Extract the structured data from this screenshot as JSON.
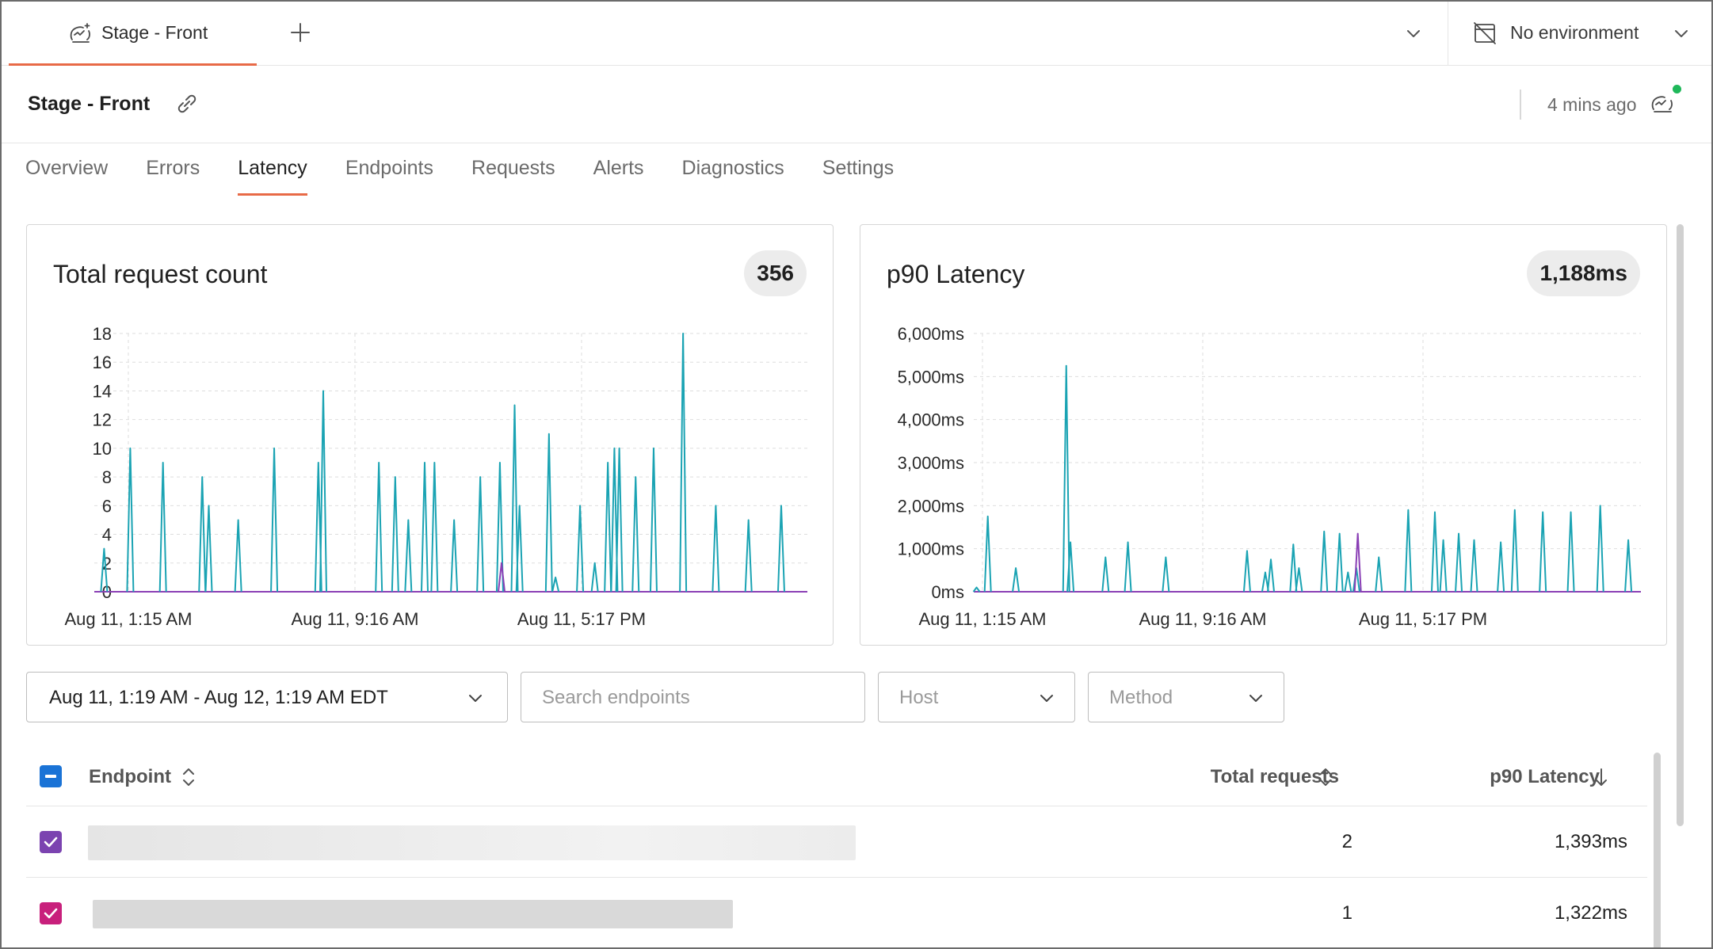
{
  "tabs": {
    "active_label": "Stage - Front",
    "environment_label": "No environment"
  },
  "header": {
    "title": "Stage - Front",
    "updated": "4 mins ago",
    "status_color": "#1fb85a"
  },
  "subnav": [
    "Overview",
    "Errors",
    "Latency",
    "Endpoints",
    "Requests",
    "Alerts",
    "Diagnostics",
    "Settings"
  ],
  "subnav_active": "Latency",
  "accent_color": "#e86a47",
  "charts": {
    "requests": {
      "title": "Total request count",
      "badge": "356"
    },
    "latency": {
      "title": "p90 Latency",
      "badge": "1,188ms"
    }
  },
  "chart_data": [
    {
      "type": "line",
      "title": "Total request count",
      "y_ticks": [
        "0",
        "2",
        "4",
        "6",
        "8",
        "10",
        "12",
        "14",
        "16",
        "18"
      ],
      "ylim": [
        0,
        18
      ],
      "x_ticks": [
        "Aug 11, 1:15 AM",
        "Aug 11, 9:16 AM",
        "Aug 11, 5:17 PM"
      ],
      "grid": true,
      "series": [
        {
          "color": "#1aa3b3",
          "spikes": [
            [
              0.3,
              3
            ],
            [
              1.1,
              10
            ],
            [
              2.1,
              9
            ],
            [
              3.3,
              8
            ],
            [
              3.5,
              6
            ],
            [
              4.4,
              5
            ],
            [
              5.5,
              10
            ],
            [
              6.85,
              9
            ],
            [
              7.0,
              14
            ],
            [
              8.7,
              9
            ],
            [
              9.2,
              8
            ],
            [
              9.6,
              5
            ],
            [
              10.1,
              9
            ],
            [
              10.4,
              9
            ],
            [
              11.0,
              5
            ],
            [
              11.8,
              8
            ],
            [
              12.4,
              9
            ],
            [
              12.85,
              13
            ],
            [
              13.0,
              6
            ],
            [
              13.9,
              11
            ],
            [
              14.1,
              1
            ],
            [
              14.85,
              6
            ],
            [
              15.3,
              2
            ],
            [
              15.7,
              9
            ],
            [
              15.9,
              10
            ],
            [
              16.05,
              10
            ],
            [
              16.55,
              8
            ],
            [
              17.1,
              10
            ],
            [
              18.0,
              18
            ],
            [
              19.0,
              6
            ],
            [
              20.0,
              5
            ],
            [
              21.0,
              6
            ]
          ]
        },
        {
          "color": "#8a3fb5",
          "spikes": [
            [
              12.45,
              2
            ]
          ]
        }
      ]
    },
    {
      "type": "line",
      "title": "p90 Latency",
      "y_ticks": [
        "0ms",
        "1,000ms",
        "2,000ms",
        "3,000ms",
        "4,000ms",
        "5,000ms",
        "6,000ms"
      ],
      "ylim": [
        0,
        6000
      ],
      "x_ticks": [
        "Aug 11, 1:15 AM",
        "Aug 11, 9:16 AM",
        "Aug 11, 5:17 PM"
      ],
      "grid": true,
      "series": [
        {
          "color": "#1aa3b3",
          "spikes": [
            [
              0.1,
              100
            ],
            [
              0.5,
              1750
            ],
            [
              1.5,
              550
            ],
            [
              3.3,
              5250
            ],
            [
              3.45,
              1150
            ],
            [
              4.7,
              800
            ],
            [
              5.5,
              1150
            ],
            [
              6.85,
              800
            ],
            [
              9.75,
              950
            ],
            [
              10.4,
              450
            ],
            [
              10.6,
              750
            ],
            [
              11.4,
              1100
            ],
            [
              11.6,
              550
            ],
            [
              12.5,
              1400
            ],
            [
              13.05,
              1350
            ],
            [
              13.35,
              450
            ],
            [
              13.65,
              550
            ],
            [
              14.45,
              800
            ],
            [
              15.5,
              1900
            ],
            [
              16.45,
              1850
            ],
            [
              16.75,
              1200
            ],
            [
              17.3,
              1350
            ],
            [
              17.85,
              1200
            ],
            [
              18.8,
              1150
            ],
            [
              19.3,
              1900
            ],
            [
              20.3,
              1850
            ],
            [
              21.3,
              1850
            ],
            [
              22.35,
              2000
            ],
            [
              23.35,
              1200
            ]
          ]
        },
        {
          "color": "#8a3fb5",
          "spikes": [
            [
              13.7,
              1350
            ]
          ]
        }
      ]
    }
  ],
  "filters": {
    "date_range": "Aug 11, 1:19 AM - Aug 12, 1:19 AM EDT",
    "search_placeholder": "Search endpoints",
    "host_placeholder": "Host",
    "method_placeholder": "Method"
  },
  "table": {
    "columns": {
      "endpoint": "Endpoint",
      "total": "Total requests",
      "p90": "p90 Latency"
    },
    "rows": [
      {
        "total": "2",
        "p90": "1,393ms",
        "check_color": "#7b43b0"
      },
      {
        "total": "1",
        "p90": "1,322ms",
        "check_color": "#c8207c"
      }
    ]
  }
}
